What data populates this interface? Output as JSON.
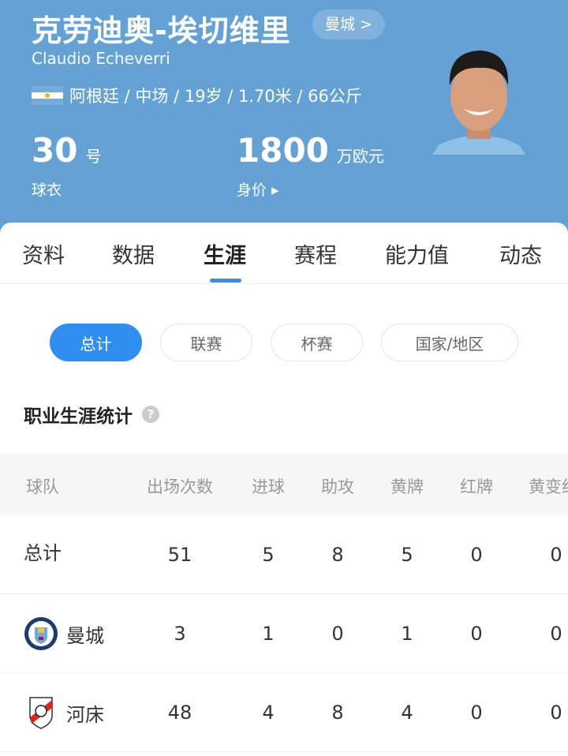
{
  "player": {
    "name_cn": "克劳迪奥-埃切维里",
    "club_link": "曼城 >",
    "name_en": "Claudio Echeverri",
    "info": "阿根廷 / 中场 / 19岁 / 1.70米 / 66公斤",
    "shirt_number": "30",
    "shirt_unit": "号",
    "shirt_label": "球衣",
    "value": "1800",
    "value_unit": "万欧元",
    "value_label": "身价 ▸"
  },
  "tabs": [
    {
      "label": "资料"
    },
    {
      "label": "数据"
    },
    {
      "label": "生涯",
      "active": true
    },
    {
      "label": "赛程"
    },
    {
      "label": "能力值"
    },
    {
      "label": "动态"
    }
  ],
  "filters": [
    {
      "label": "总计",
      "active": true
    },
    {
      "label": "联赛"
    },
    {
      "label": "杯赛"
    },
    {
      "label": "国家/地区"
    }
  ],
  "section": {
    "title": "职业生涯统计",
    "help": "?"
  },
  "table": {
    "headers": [
      "球队",
      "出场次数",
      "进球",
      "助攻",
      "黄牌",
      "红牌",
      "黄变红"
    ],
    "rows": [
      {
        "team": "总计",
        "values": [
          "51",
          "5",
          "8",
          "5",
          "0",
          "0"
        ]
      },
      {
        "team": "曼城",
        "crest": "man-city-crest",
        "values": [
          "3",
          "1",
          "0",
          "1",
          "0",
          "0"
        ]
      },
      {
        "team": "河床",
        "crest": "river-plate-crest",
        "values": [
          "48",
          "4",
          "8",
          "4",
          "0",
          "0"
        ]
      }
    ]
  },
  "colors": {
    "hero": "#64a2d6",
    "accent": "#2f8ff0"
  }
}
